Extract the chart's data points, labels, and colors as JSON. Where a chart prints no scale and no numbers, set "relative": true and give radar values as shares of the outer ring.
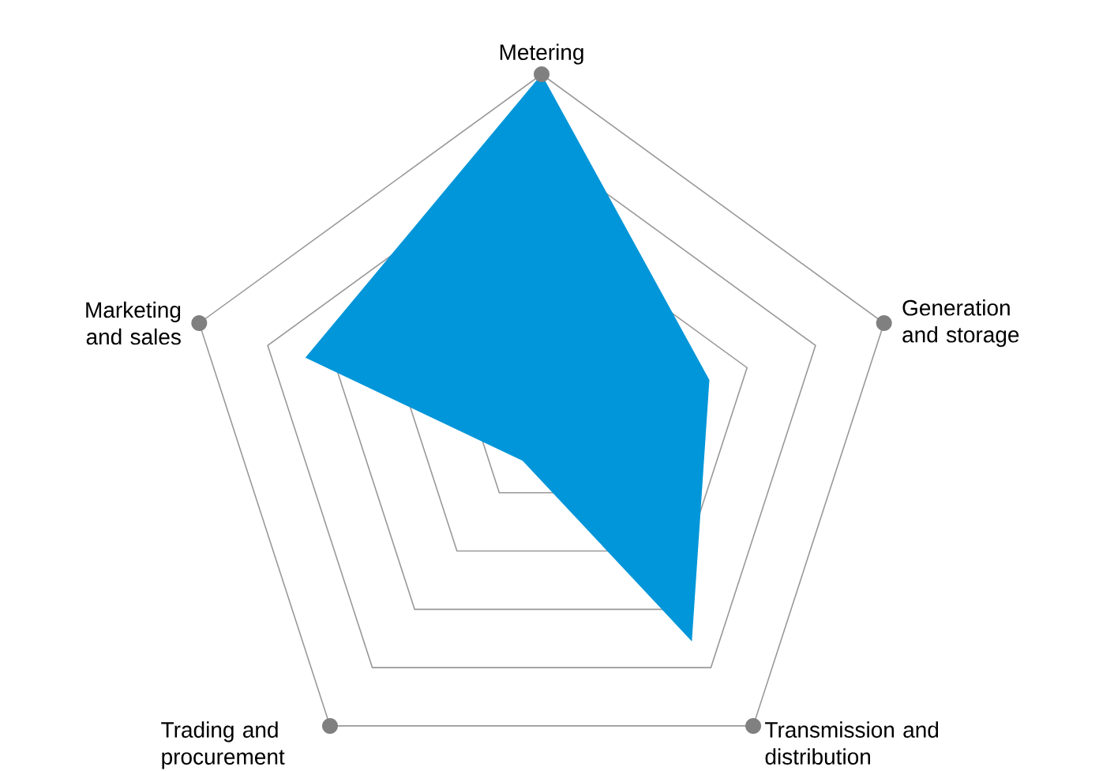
{
  "chart_data": {
    "type": "radar",
    "relative": true,
    "grid": true,
    "categories": [
      "Metering",
      "Generation and storage",
      "Transmission and distribution",
      "Trading and procurement",
      "Marketing and sales"
    ],
    "series": [
      {
        "color": "#0096d9",
        "values": [
          1,
          0.49,
          0.71,
          0.09,
          0.69
        ]
      }
    ]
  }
}
